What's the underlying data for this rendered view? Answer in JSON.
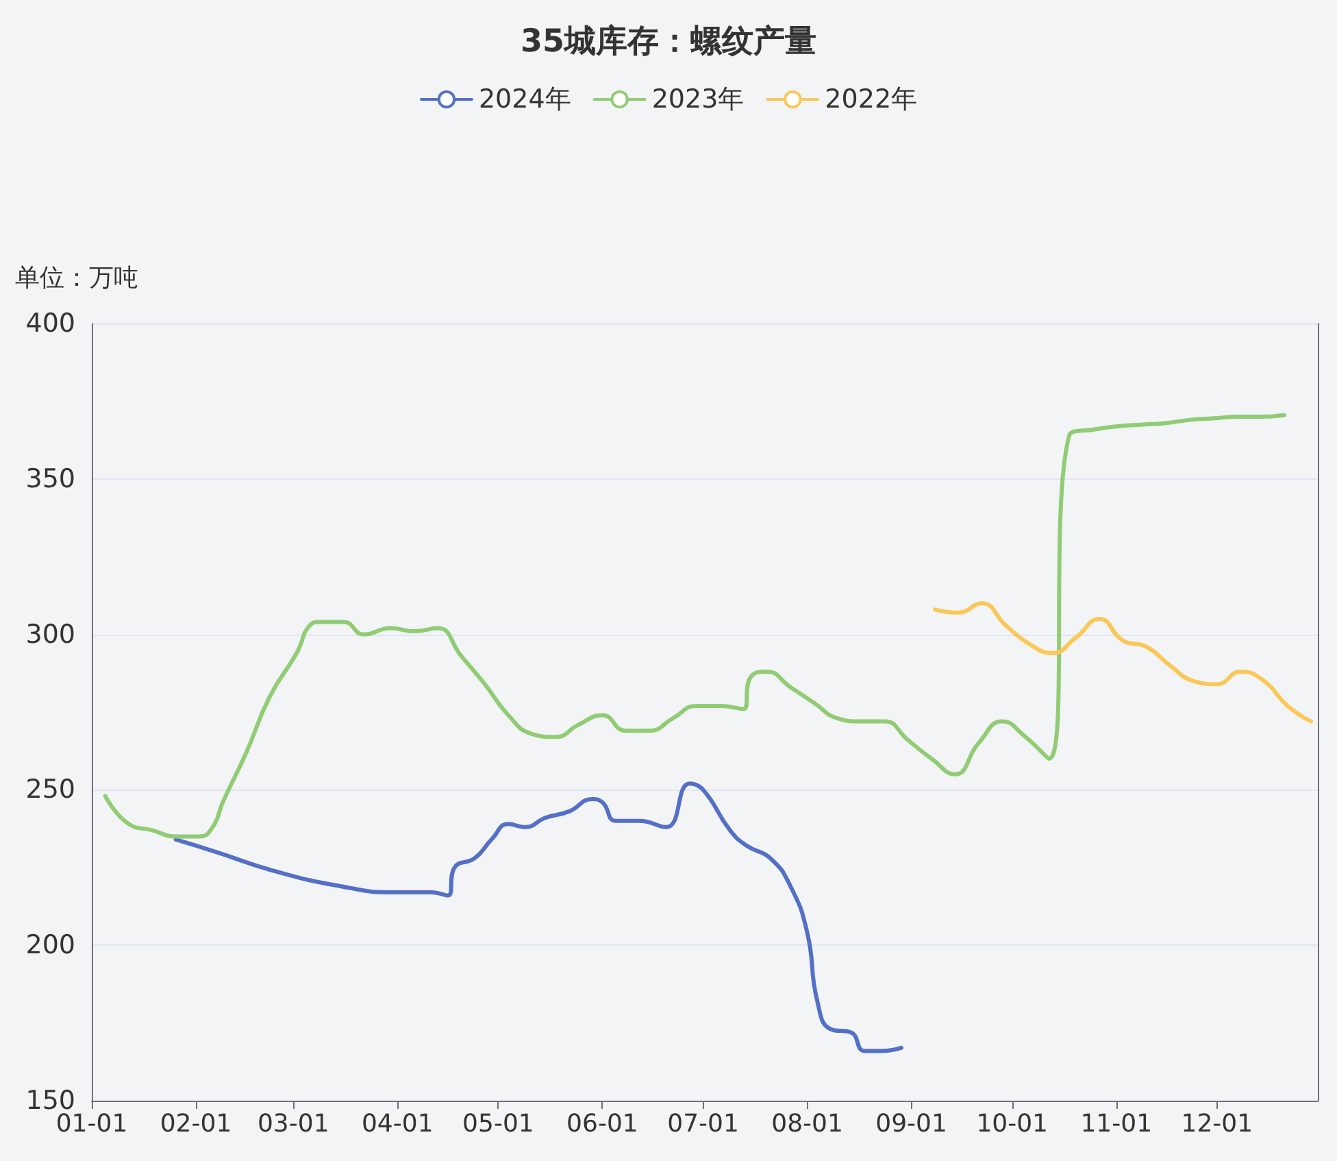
{
  "chart_data": {
    "type": "line",
    "title": "35城库存：螺纹产量",
    "ylabel": "单位：万吨",
    "series": [
      {
        "name": "2024年",
        "color": "#5470c6",
        "x": [
          "--01-26",
          "--02-07",
          "--02-24",
          "--03-15",
          "--03-31",
          "--04-11",
          "--04-16",
          "--04-18",
          "--04-24",
          "--04-29",
          "--05-04",
          "--05-09",
          "--05-15",
          "--05-22",
          "--05-29",
          "--06-01",
          "--06-05",
          "--06-12",
          "--06-20",
          "--06-27",
          "--07-01",
          "--07-09",
          "--07-14",
          "--07-21",
          "--07-27",
          "--08-01",
          "--08-04",
          "--08-08",
          "--08-14",
          "--08-18",
          "--08-23",
          "--08-29"
        ],
        "values": [
          234,
          230,
          224,
          219,
          217,
          217,
          216,
          225,
          228,
          234,
          239,
          238,
          241,
          243,
          247,
          246,
          240,
          240,
          238,
          252,
          250,
          237,
          232,
          228,
          219,
          204,
          182,
          173,
          172,
          166,
          166,
          167
        ]
      },
      {
        "name": "2023年",
        "color": "#91cc75",
        "x": [
          "--01-05",
          "--01-12",
          "--01-19",
          "--01-26",
          "--02-02",
          "--02-06",
          "--02-09",
          "--02-16",
          "--02-23",
          "--03-02",
          "--03-06",
          "--03-09",
          "--03-16",
          "--03-22",
          "--03-30",
          "--04-06",
          "--04-13",
          "--04-20",
          "--04-27",
          "--05-04",
          "--05-11",
          "--05-18",
          "--05-25",
          "--06-01",
          "--06-08",
          "--06-15",
          "--06-22",
          "--06-29",
          "--07-06",
          "--07-13",
          "--07-15",
          "--07-20",
          "--07-27",
          "--08-03",
          "--08-10",
          "--08-17",
          "--08-24",
          "--08-31",
          "--09-07",
          "--09-14",
          "--09-21",
          "--09-28",
          "--10-05",
          "--10-12",
          "--10-18",
          "--10-26",
          "--11-02",
          "--11-09",
          "--11-16",
          "--11-23",
          "--11-30",
          "--12-07",
          "--12-14",
          "--12-21"
        ],
        "values": [
          248,
          239,
          237,
          235,
          235,
          238,
          246,
          262,
          280,
          294,
          303,
          304,
          304,
          300,
          302,
          301,
          302,
          293,
          284,
          274,
          268,
          267,
          271,
          274,
          269,
          269,
          273,
          277,
          277,
          276,
          286,
          288,
          283,
          278,
          273,
          272,
          272,
          266,
          260,
          255,
          265,
          272,
          267,
          260,
          364,
          366,
          367,
          367.5,
          368,
          369,
          369.5,
          370,
          370,
          370.5
        ]
      },
      {
        "name": "2022年",
        "color": "#fac858",
        "x": [
          "--09-08",
          "--09-15",
          "--09-22",
          "--09-29",
          "--10-06",
          "--10-13",
          "--10-20",
          "--10-27",
          "--11-03",
          "--11-10",
          "--11-17",
          "--11-24",
          "--12-01",
          "--12-08",
          "--12-15",
          "--12-22",
          "--12-29"
        ],
        "values": [
          308,
          307,
          310,
          303,
          297,
          294,
          299,
          305,
          298,
          296,
          290,
          285,
          284,
          288,
          285,
          277,
          272
        ]
      }
    ],
    "xlim": [
      "--01-01",
      "--12-31"
    ],
    "xticks": [
      {
        "value": "--01-01",
        "label": "01-01"
      },
      {
        "value": "--02-01",
        "label": "02-01"
      },
      {
        "value": "--03-01",
        "label": "03-01"
      },
      {
        "value": "--04-01",
        "label": "04-01"
      },
      {
        "value": "--05-01",
        "label": "05-01"
      },
      {
        "value": "--06-01",
        "label": "06-01"
      },
      {
        "value": "--07-01",
        "label": "07-01"
      },
      {
        "value": "--08-01",
        "label": "08-01"
      },
      {
        "value": "--09-01",
        "label": "09-01"
      },
      {
        "value": "--10-01",
        "label": "10-01"
      },
      {
        "value": "--11-01",
        "label": "11-01"
      },
      {
        "value": "--12-01",
        "label": "12-01"
      }
    ],
    "ylim": [
      150,
      400
    ],
    "yticks": [
      150,
      200,
      250,
      300,
      350,
      400
    ],
    "grid": "y",
    "legend": "top",
    "marker": "none",
    "line_style": "solid"
  }
}
